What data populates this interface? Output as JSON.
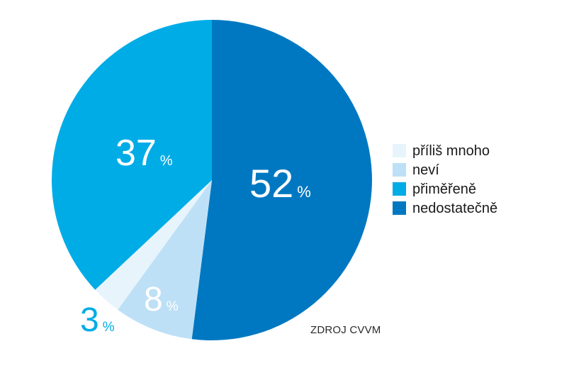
{
  "chart_data": {
    "type": "pie",
    "slices": [
      {
        "label": "nedostatečně",
        "value": 52,
        "value_text": "52",
        "color": "#0078c1"
      },
      {
        "label": "neví",
        "value": 8,
        "value_text": "8",
        "color": "#bde0f6"
      },
      {
        "label": "příliš mnoho",
        "value": 3,
        "value_text": "3",
        "color": "#e8f4fc"
      },
      {
        "label": "přiměřeně",
        "value": 37,
        "value_text": "37",
        "color": "#00ace6"
      }
    ],
    "unit": "%",
    "start": "top",
    "direction": "clockwise",
    "legend_position": "right",
    "legend": [
      {
        "label": "příliš mnoho",
        "color": "#e8f4fc"
      },
      {
        "label": "neví",
        "color": "#bde0f6"
      },
      {
        "label": "přiměřeně",
        "color": "#00ace6"
      },
      {
        "label": "nedostatečně",
        "color": "#0078c1"
      }
    ]
  },
  "source": "ZDROJ CVVM"
}
